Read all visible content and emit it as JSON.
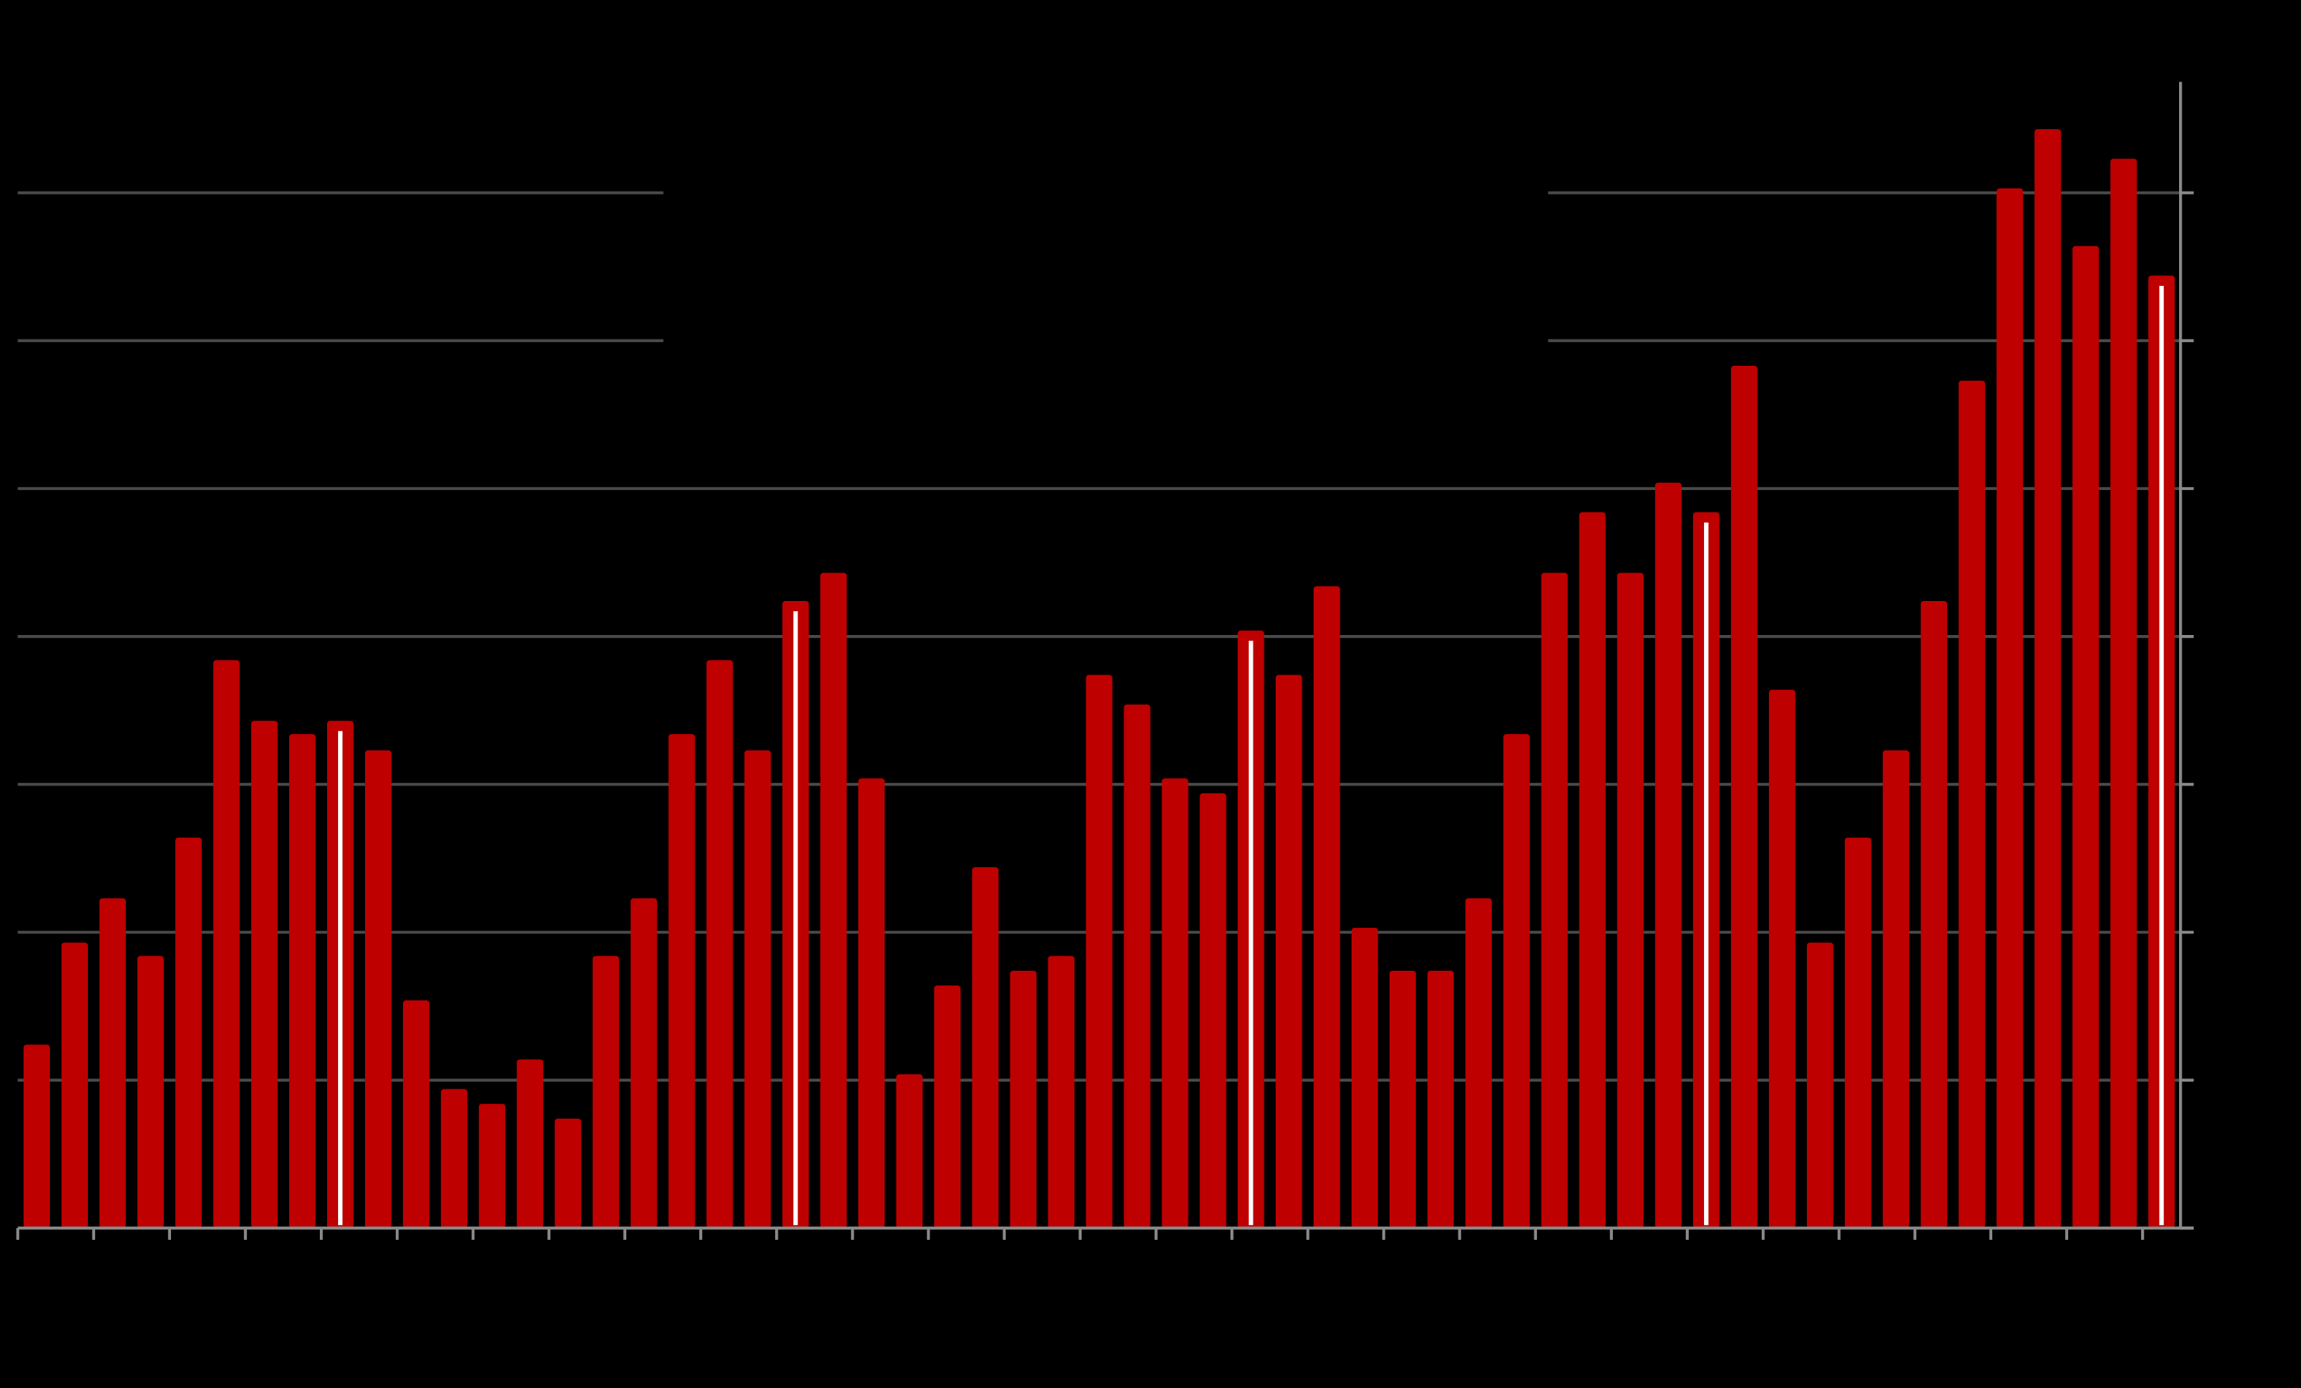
{
  "chart_data": {
    "type": "bar",
    "categories": [
      null,
      null,
      null,
      null,
      null,
      null,
      null,
      null,
      null,
      null,
      null,
      null,
      null,
      null,
      null,
      null,
      null,
      null,
      null,
      null,
      null,
      null,
      null,
      null,
      null,
      null,
      null,
      null,
      null,
      null,
      null,
      null,
      null,
      null,
      null,
      null,
      null,
      null,
      null,
      null,
      null,
      null,
      null,
      null,
      null,
      null,
      null,
      null,
      null,
      null,
      null,
      null,
      null,
      null,
      null,
      null,
      null
    ],
    "values": [
      1.24,
      1.93,
      2.23,
      1.84,
      2.64,
      3.84,
      3.43,
      3.34,
      3.43,
      3.23,
      1.54,
      0.94,
      0.84,
      1.14,
      0.74,
      1.84,
      2.23,
      3.34,
      3.84,
      3.23,
      4.24,
      4.43,
      3.04,
      1.04,
      1.64,
      2.44,
      1.74,
      1.84,
      3.74,
      3.54,
      3.04,
      2.94,
      4.04,
      3.74,
      4.34,
      2.03,
      1.74,
      1.74,
      2.23,
      3.34,
      4.43,
      4.84,
      4.43,
      5.04,
      4.84,
      5.83,
      3.64,
      1.93,
      2.64,
      3.23,
      4.24,
      5.73,
      7.03,
      7.43,
      6.64,
      7.23,
      6.44
    ],
    "color": "#bf0000",
    "highlight_index": [
      8,
      20,
      32,
      44,
      56
    ],
    "highlight_color": "#ffffff",
    "ylim": [
      0,
      7.75
    ],
    "yticks": [
      0,
      1,
      2,
      3,
      4,
      5,
      6,
      7
    ],
    "grid": true,
    "y_axis_side": "right"
  }
}
